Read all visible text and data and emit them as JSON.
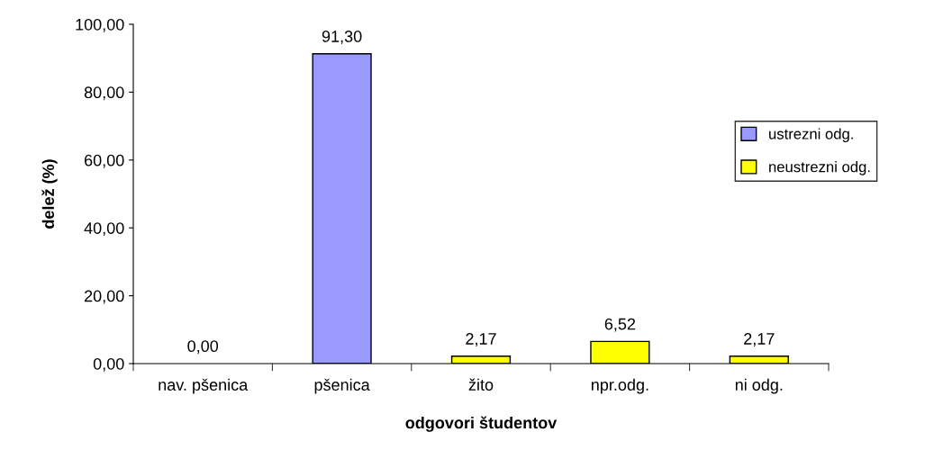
{
  "chart_data": {
    "type": "bar",
    "xlabel": "odgovori študentov",
    "ylabel": "delež (%)",
    "categories": [
      "nav. pšenica",
      "pšenica",
      "žito",
      "npr.odg.",
      "ni odg."
    ],
    "series": [
      {
        "name": "ustrezni odg.",
        "color": "#9999ff",
        "values": [
          0,
          91.3,
          null,
          null,
          null
        ],
        "value_labels": [
          "0,00",
          "91,30",
          null,
          null,
          null
        ]
      },
      {
        "name": "neustrezni odg.",
        "color": "#ffff00",
        "values": [
          null,
          null,
          2.17,
          6.52,
          2.17
        ],
        "value_labels": [
          null,
          null,
          "2,17",
          "6,52",
          "2,17"
        ]
      }
    ],
    "ylim": [
      0,
      100
    ],
    "yticks": [
      {
        "value": 0,
        "label": "0,00"
      },
      {
        "value": 20,
        "label": "20,00"
      },
      {
        "value": 40,
        "label": "40,00"
      },
      {
        "value": 60,
        "label": "60,00"
      },
      {
        "value": 80,
        "label": "80,00"
      },
      {
        "value": 100,
        "label": "100,00"
      }
    ],
    "grid": false,
    "legend": "right"
  }
}
